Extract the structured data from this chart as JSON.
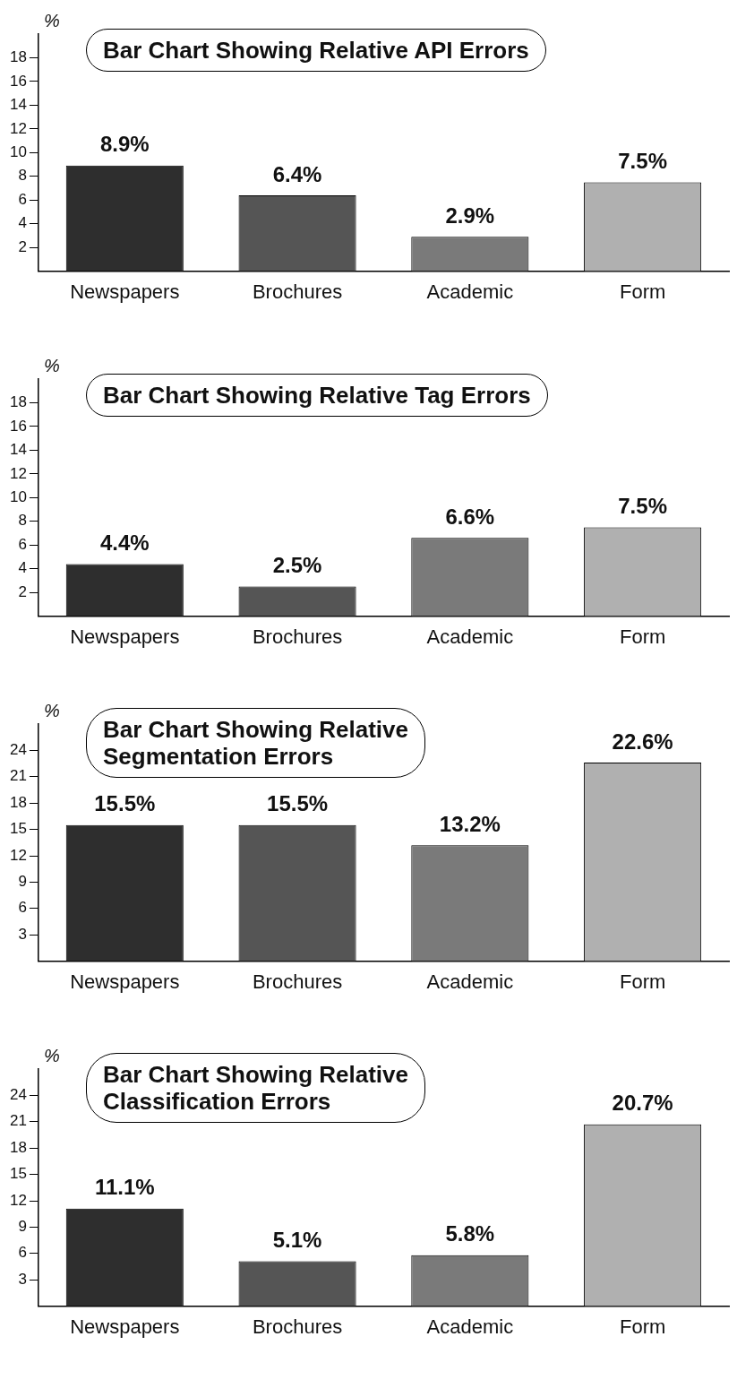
{
  "chart_data": [
    {
      "type": "bar",
      "title": "Bar Chart Showing Relative API Errors",
      "ylabel": "%",
      "categories": [
        "Newspapers",
        "Brochures",
        "Academic",
        "Form"
      ],
      "values": [
        8.9,
        6.4,
        2.9,
        7.5
      ],
      "colors": [
        "#2e2e2e",
        "#555555",
        "#7a7a7a",
        "#b0b0b0"
      ],
      "value_labels": [
        "8.9%",
        "6.4%",
        "2.9%",
        "7.5%"
      ],
      "ylim": [
        0,
        20
      ],
      "yticks": [
        2,
        4,
        6,
        8,
        10,
        12,
        14,
        16,
        18
      ]
    },
    {
      "type": "bar",
      "title": "Bar Chart Showing Relative Tag Errors",
      "ylabel": "%",
      "categories": [
        "Newspapers",
        "Brochures",
        "Academic",
        "Form"
      ],
      "values": [
        4.4,
        2.5,
        6.6,
        7.5
      ],
      "colors": [
        "#2e2e2e",
        "#555555",
        "#7a7a7a",
        "#b0b0b0"
      ],
      "value_labels": [
        "4.4%",
        "2.5%",
        "6.6%",
        "7.5%"
      ],
      "ylim": [
        0,
        20
      ],
      "yticks": [
        2,
        4,
        6,
        8,
        10,
        12,
        14,
        16,
        18
      ]
    },
    {
      "type": "bar",
      "title": "Bar Chart Showing Relative\nSegmentation Errors",
      "ylabel": "%",
      "categories": [
        "Newspapers",
        "Brochures",
        "Academic",
        "Form"
      ],
      "values": [
        15.5,
        15.5,
        13.2,
        22.6
      ],
      "colors": [
        "#2e2e2e",
        "#555555",
        "#7a7a7a",
        "#b0b0b0"
      ],
      "value_labels": [
        "15.5%",
        "15.5%",
        "13.2%",
        "22.6%"
      ],
      "ylim": [
        0,
        27
      ],
      "yticks": [
        3,
        6,
        9,
        12,
        15,
        18,
        21,
        24
      ]
    },
    {
      "type": "bar",
      "title": "Bar Chart Showing Relative\nClassification Errors",
      "ylabel": "%",
      "categories": [
        "Newspapers",
        "Brochures",
        "Academic",
        "Form"
      ],
      "values": [
        11.1,
        5.1,
        5.8,
        20.7
      ],
      "colors": [
        "#2e2e2e",
        "#555555",
        "#7a7a7a",
        "#b0b0b0"
      ],
      "value_labels": [
        "11.1%",
        "5.1%",
        "5.8%",
        "20.7%"
      ],
      "ylim": [
        0,
        27
      ],
      "yticks": [
        3,
        6,
        9,
        12,
        15,
        18,
        21,
        24
      ]
    }
  ]
}
